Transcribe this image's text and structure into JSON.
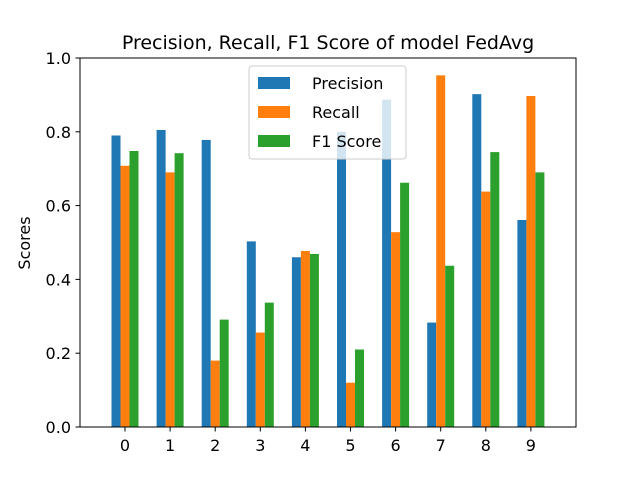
{
  "chart_data": {
    "type": "bar",
    "title": "Precision, Recall, F1 Score of model FedAvg",
    "xlabel": "",
    "ylabel": "Scores",
    "categories": [
      "0",
      "1",
      "2",
      "3",
      "4",
      "5",
      "6",
      "7",
      "8",
      "9"
    ],
    "ylim": [
      0.0,
      1.0
    ],
    "yticks": [
      "0.0",
      "0.2",
      "0.4",
      "0.6",
      "0.8",
      "1.0"
    ],
    "grid": false,
    "legend_position": "top-center",
    "series": [
      {
        "name": "Precision",
        "color": "#1f77b4",
        "values": [
          0.79,
          0.805,
          0.778,
          0.503,
          0.46,
          0.8,
          0.887,
          0.283,
          0.902,
          0.561
        ]
      },
      {
        "name": "Recall",
        "color": "#ff7f0e",
        "values": [
          0.708,
          0.69,
          0.18,
          0.256,
          0.477,
          0.12,
          0.528,
          0.953,
          0.638,
          0.897
        ]
      },
      {
        "name": "F1 Score",
        "color": "#2ca02c",
        "values": [
          0.748,
          0.742,
          0.291,
          0.337,
          0.469,
          0.21,
          0.662,
          0.437,
          0.745,
          0.69
        ]
      }
    ]
  }
}
